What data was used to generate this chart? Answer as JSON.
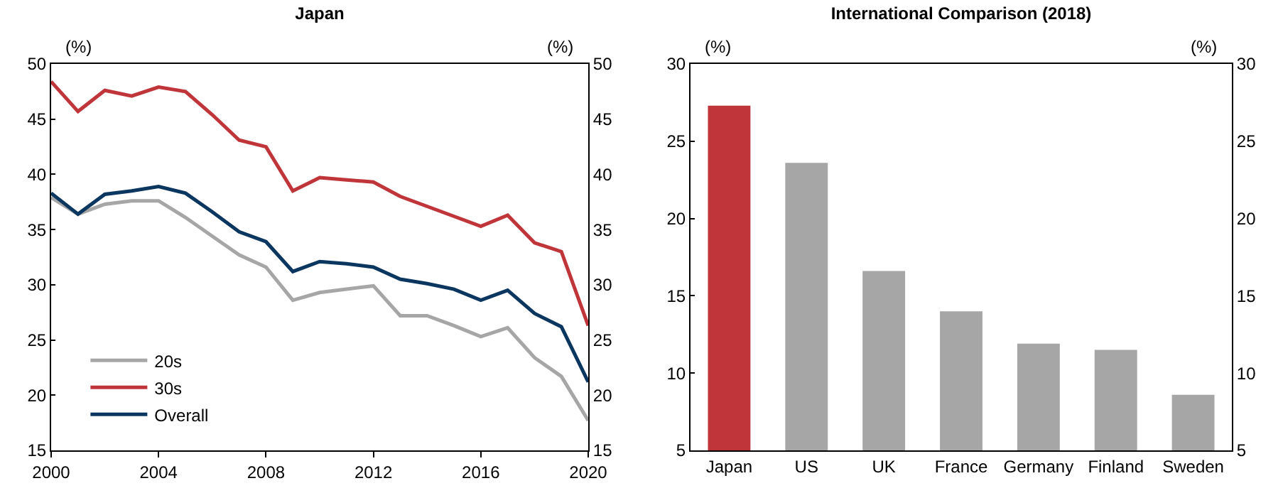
{
  "chart_data": [
    {
      "type": "line",
      "title": "Japan",
      "ylabel": "(%)",
      "y2label": "(%)",
      "x": [
        2000,
        2001,
        2002,
        2003,
        2004,
        2005,
        2006,
        2007,
        2008,
        2009,
        2010,
        2011,
        2012,
        2013,
        2014,
        2015,
        2016,
        2017,
        2018,
        2019,
        2020
      ],
      "series": [
        {
          "name": "20s",
          "color": "#a6a6a6",
          "values": [
            37.9,
            36.4,
            37.3,
            37.6,
            37.6,
            36.1,
            34.4,
            32.7,
            31.6,
            28.6,
            29.3,
            29.6,
            29.9,
            27.2,
            27.2,
            26.3,
            25.3,
            26.1,
            23.4,
            21.7,
            17.7
          ]
        },
        {
          "name": "30s",
          "color": "#c0353a",
          "values": [
            48.4,
            45.7,
            47.6,
            47.1,
            47.9,
            47.5,
            45.4,
            43.1,
            42.5,
            38.5,
            39.7,
            39.5,
            39.3,
            38.0,
            37.1,
            36.2,
            35.3,
            36.3,
            33.8,
            33.0,
            26.3
          ]
        },
        {
          "name": "Overall",
          "color": "#0b3660",
          "values": [
            38.3,
            36.4,
            38.2,
            38.5,
            38.9,
            38.3,
            36.6,
            34.8,
            33.9,
            31.2,
            32.1,
            31.9,
            31.6,
            30.5,
            30.1,
            29.6,
            28.6,
            29.5,
            27.4,
            26.2,
            21.2
          ]
        }
      ],
      "xlim": [
        2000,
        2020
      ],
      "xticks": [
        2000,
        2004,
        2008,
        2012,
        2016,
        2020
      ],
      "ylim": [
        15,
        50
      ],
      "yticks": [
        15,
        20,
        25,
        30,
        35,
        40,
        45,
        50
      ],
      "y2lim": [
        15,
        50
      ],
      "y2ticks": [
        15,
        20,
        25,
        30,
        35,
        40,
        45,
        50
      ],
      "legend": "bottom left"
    },
    {
      "type": "bar",
      "title": "International Comparison (2018)",
      "ylabel": "(%)",
      "y2label": "(%)",
      "categories": [
        "Japan",
        "US",
        "UK",
        "France",
        "Germany",
        "Finland",
        "Sweden"
      ],
      "values": [
        27.3,
        23.6,
        16.6,
        14.0,
        11.9,
        11.5,
        8.6
      ],
      "colors": [
        "#c0353a",
        "#a6a6a6",
        "#a6a6a6",
        "#a6a6a6",
        "#a6a6a6",
        "#a6a6a6",
        "#a6a6a6"
      ],
      "ylim": [
        5,
        30
      ],
      "yticks": [
        5,
        10,
        15,
        20,
        25,
        30
      ],
      "y2lim": [
        5,
        30
      ],
      "y2ticks": [
        5,
        10,
        15,
        20,
        25,
        30
      ]
    }
  ]
}
